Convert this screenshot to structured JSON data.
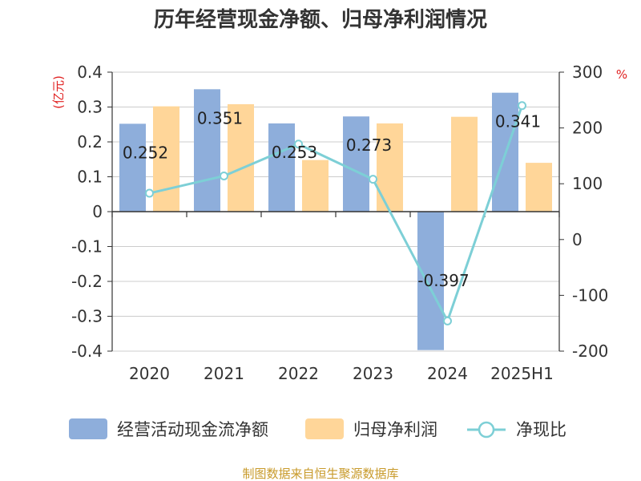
{
  "colors": {
    "operating_cash_flow": "#8eaedb",
    "net_profit": "#ffd699",
    "ratio_line": "#7dcfd6",
    "axis_unit_red": "#e02020",
    "source_gold": "#c89a2a",
    "text": "#333333"
  },
  "chart_data": {
    "type": "bar",
    "title": "历年经营现金净额、归母净利润情况",
    "categories": [
      "2020",
      "2021",
      "2022",
      "2023",
      "2024",
      "2025H1"
    ],
    "series": [
      {
        "name": "经营活动现金流净额",
        "type": "bar",
        "axis": "left",
        "values": [
          0.252,
          0.351,
          0.253,
          0.273,
          -0.397,
          0.341
        ],
        "labels": [
          "0.252",
          "0.351",
          "0.253",
          "0.273",
          "-0.397",
          "0.341"
        ]
      },
      {
        "name": "归母净利润",
        "type": "bar",
        "axis": "left",
        "values": [
          0.302,
          0.308,
          0.148,
          0.253,
          0.272,
          0.14
        ]
      },
      {
        "name": "净现比",
        "type": "line",
        "axis": "right",
        "values": [
          83,
          114,
          171,
          108,
          -146,
          240
        ]
      }
    ],
    "left_axis": {
      "unit": "(亿元)",
      "ylim": [
        -0.4,
        0.4
      ],
      "ticks": [
        "0.4",
        "0.3",
        "0.2",
        "0.1",
        "0",
        "-0.1",
        "-0.2",
        "-0.3",
        "-0.4"
      ],
      "tick_values": [
        0.4,
        0.3,
        0.2,
        0.1,
        0,
        -0.1,
        -0.2,
        -0.3,
        -0.4
      ]
    },
    "right_axis": {
      "unit": "%",
      "ylim": [
        -200,
        300
      ],
      "ticks": [
        "300",
        "200",
        "100",
        "0",
        "-100",
        "-200"
      ],
      "tick_values": [
        300,
        200,
        100,
        0,
        -100,
        -200
      ]
    },
    "grid": true,
    "legend_position": "bottom"
  },
  "source_text": "制图数据来自恒生聚源数据库"
}
